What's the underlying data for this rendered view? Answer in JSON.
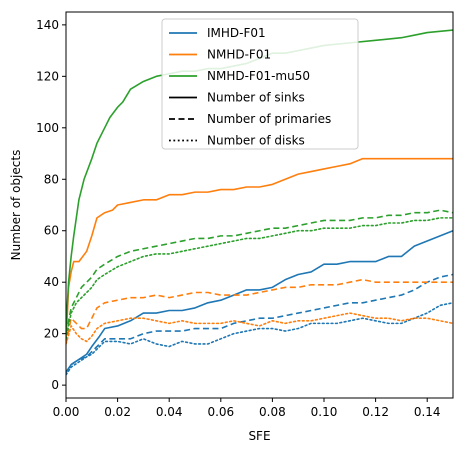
{
  "chart_data": {
    "type": "line",
    "xlabel": "SFE",
    "ylabel": "Number of objects",
    "xlim": [
      0.0,
      0.15
    ],
    "ylim": [
      -5,
      145
    ],
    "xticks": [
      0.0,
      0.02,
      0.04,
      0.06,
      0.08,
      0.1,
      0.12,
      0.14
    ],
    "xtick_labels": [
      "0.00",
      "0.02",
      "0.04",
      "0.06",
      "0.08",
      "0.10",
      "0.12",
      "0.14"
    ],
    "yticks": [
      0,
      20,
      40,
      60,
      80,
      100,
      120,
      140
    ],
    "ytick_labels": [
      "0",
      "20",
      "40",
      "60",
      "80",
      "100",
      "120",
      "140"
    ],
    "grid": false,
    "legend_position": "top-center",
    "legend": {
      "runs": [
        {
          "label": "IMHD-F01",
          "color": "#1f77b4"
        },
        {
          "label": "NMHD-F01",
          "color": "#ff7f0e"
        },
        {
          "label": "NMHD-F01-mu50",
          "color": "#2ca02c"
        }
      ],
      "styles": [
        {
          "label": "Number of sinks",
          "dash": "solid"
        },
        {
          "label": "Number of primaries",
          "dash": "dashed"
        },
        {
          "label": "Number of disks",
          "dash": "dotted"
        }
      ]
    },
    "series": [
      {
        "run": "IMHD-F01",
        "quantity": "Number of sinks",
        "color": "#1f77b4",
        "dash": "solid",
        "x": [
          0.0,
          0.002,
          0.005,
          0.008,
          0.01,
          0.013,
          0.015,
          0.02,
          0.025,
          0.03,
          0.035,
          0.04,
          0.045,
          0.05,
          0.055,
          0.06,
          0.065,
          0.07,
          0.075,
          0.08,
          0.085,
          0.09,
          0.095,
          0.1,
          0.105,
          0.11,
          0.115,
          0.12,
          0.125,
          0.13,
          0.135,
          0.14,
          0.145,
          0.15
        ],
        "y": [
          5,
          8,
          10,
          12,
          15,
          19,
          22,
          23,
          25,
          28,
          28,
          29,
          29,
          30,
          32,
          33,
          35,
          37,
          37,
          38,
          41,
          43,
          44,
          47,
          47,
          48,
          48,
          48,
          50,
          50,
          54,
          56,
          58,
          60
        ]
      },
      {
        "run": "IMHD-F01",
        "quantity": "Number of primaries",
        "color": "#1f77b4",
        "dash": "dashed",
        "x": [
          0.0,
          0.002,
          0.005,
          0.008,
          0.01,
          0.013,
          0.015,
          0.02,
          0.025,
          0.03,
          0.035,
          0.04,
          0.045,
          0.05,
          0.055,
          0.06,
          0.065,
          0.07,
          0.075,
          0.08,
          0.085,
          0.09,
          0.095,
          0.1,
          0.105,
          0.11,
          0.115,
          0.12,
          0.125,
          0.13,
          0.135,
          0.14,
          0.145,
          0.15
        ],
        "y": [
          5,
          8,
          10,
          11,
          13,
          16,
          18,
          18,
          18,
          20,
          21,
          21,
          21,
          22,
          22,
          22,
          24,
          25,
          26,
          26,
          27,
          28,
          29,
          30,
          31,
          32,
          32,
          33,
          34,
          35,
          37,
          40,
          42,
          43
        ]
      },
      {
        "run": "IMHD-F01",
        "quantity": "Number of disks",
        "color": "#1f77b4",
        "dash": "dotted",
        "x": [
          0.0,
          0.002,
          0.005,
          0.008,
          0.01,
          0.013,
          0.015,
          0.02,
          0.025,
          0.03,
          0.035,
          0.04,
          0.045,
          0.05,
          0.055,
          0.06,
          0.065,
          0.07,
          0.075,
          0.08,
          0.085,
          0.09,
          0.095,
          0.1,
          0.105,
          0.11,
          0.115,
          0.12,
          0.125,
          0.13,
          0.135,
          0.14,
          0.145,
          0.15
        ],
        "y": [
          4,
          7,
          9,
          11,
          12,
          15,
          17,
          17,
          16,
          18,
          16,
          15,
          17,
          16,
          16,
          18,
          20,
          21,
          22,
          22,
          21,
          22,
          24,
          24,
          24,
          25,
          26,
          25,
          24,
          24,
          26,
          28,
          31,
          32
        ]
      },
      {
        "run": "NMHD-F01",
        "quantity": "Number of sinks",
        "color": "#ff7f0e",
        "dash": "solid",
        "x": [
          0.0,
          0.001,
          0.002,
          0.003,
          0.005,
          0.008,
          0.01,
          0.012,
          0.015,
          0.018,
          0.02,
          0.025,
          0.03,
          0.035,
          0.04,
          0.045,
          0.05,
          0.055,
          0.06,
          0.065,
          0.07,
          0.075,
          0.08,
          0.085,
          0.09,
          0.095,
          0.1,
          0.105,
          0.11,
          0.115,
          0.12,
          0.13,
          0.14,
          0.15
        ],
        "y": [
          16,
          38,
          44,
          48,
          48,
          52,
          58,
          65,
          67,
          68,
          70,
          71,
          72,
          72,
          74,
          74,
          75,
          75,
          76,
          76,
          77,
          77,
          78,
          80,
          82,
          83,
          84,
          85,
          86,
          88,
          88,
          88,
          88,
          88
        ]
      },
      {
        "run": "NMHD-F01",
        "quantity": "Number of primaries",
        "color": "#ff7f0e",
        "dash": "dashed",
        "x": [
          0.0,
          0.002,
          0.004,
          0.006,
          0.008,
          0.01,
          0.012,
          0.015,
          0.02,
          0.025,
          0.03,
          0.035,
          0.04,
          0.045,
          0.05,
          0.055,
          0.06,
          0.065,
          0.07,
          0.075,
          0.08,
          0.085,
          0.09,
          0.095,
          0.1,
          0.105,
          0.11,
          0.115,
          0.12,
          0.125,
          0.13,
          0.135,
          0.14,
          0.145,
          0.15
        ],
        "y": [
          16,
          26,
          24,
          22,
          22,
          26,
          30,
          32,
          33,
          34,
          34,
          35,
          34,
          35,
          36,
          36,
          35,
          35,
          35,
          36,
          37,
          38,
          38,
          39,
          39,
          39,
          40,
          41,
          40,
          40,
          40,
          40,
          40,
          40,
          40
        ]
      },
      {
        "run": "NMHD-F01",
        "quantity": "Number of disks",
        "color": "#ff7f0e",
        "dash": "dotted",
        "x": [
          0.0,
          0.002,
          0.004,
          0.006,
          0.008,
          0.01,
          0.012,
          0.015,
          0.02,
          0.025,
          0.03,
          0.035,
          0.04,
          0.045,
          0.05,
          0.055,
          0.06,
          0.065,
          0.07,
          0.075,
          0.08,
          0.085,
          0.09,
          0.095,
          0.1,
          0.105,
          0.11,
          0.115,
          0.12,
          0.125,
          0.13,
          0.135,
          0.14,
          0.145,
          0.15
        ],
        "y": [
          16,
          23,
          20,
          18,
          17,
          19,
          22,
          24,
          25,
          26,
          26,
          25,
          24,
          25,
          24,
          24,
          24,
          25,
          24,
          23,
          25,
          24,
          25,
          25,
          26,
          27,
          28,
          27,
          26,
          26,
          25,
          26,
          26,
          25,
          24
        ]
      },
      {
        "run": "NMHD-F01-mu50",
        "quantity": "Number of sinks",
        "color": "#2ca02c",
        "dash": "solid",
        "x": [
          0.0,
          0.001,
          0.002,
          0.003,
          0.004,
          0.005,
          0.007,
          0.01,
          0.012,
          0.015,
          0.017,
          0.02,
          0.022,
          0.025,
          0.03,
          0.035,
          0.04,
          0.045,
          0.05,
          0.055,
          0.06,
          0.065,
          0.07,
          0.075,
          0.08,
          0.085,
          0.09,
          0.095,
          0.1,
          0.11,
          0.12,
          0.13,
          0.135,
          0.14,
          0.15
        ],
        "y": [
          22,
          40,
          50,
          58,
          65,
          72,
          80,
          88,
          94,
          100,
          104,
          108,
          110,
          115,
          118,
          120,
          121,
          122,
          122,
          123,
          123,
          124,
          125,
          127,
          129,
          129,
          130,
          131,
          132,
          133,
          134,
          135,
          136,
          137,
          138
        ]
      },
      {
        "run": "NMHD-F01-mu50",
        "quantity": "Number of primaries",
        "color": "#2ca02c",
        "dash": "dashed",
        "x": [
          0.0,
          0.002,
          0.004,
          0.006,
          0.008,
          0.01,
          0.012,
          0.015,
          0.02,
          0.025,
          0.03,
          0.035,
          0.04,
          0.045,
          0.05,
          0.055,
          0.06,
          0.065,
          0.07,
          0.075,
          0.08,
          0.085,
          0.09,
          0.095,
          0.1,
          0.105,
          0.11,
          0.115,
          0.12,
          0.125,
          0.13,
          0.135,
          0.14,
          0.145,
          0.15
        ],
        "y": [
          20,
          30,
          34,
          38,
          40,
          42,
          45,
          47,
          50,
          52,
          53,
          54,
          55,
          56,
          57,
          57,
          58,
          58,
          59,
          60,
          61,
          61,
          62,
          63,
          64,
          64,
          64,
          65,
          65,
          66,
          66,
          67,
          67,
          68,
          67
        ]
      },
      {
        "run": "NMHD-F01-mu50",
        "quantity": "Number of disks",
        "color": "#2ca02c",
        "dash": "dotted",
        "x": [
          0.0,
          0.002,
          0.004,
          0.006,
          0.008,
          0.01,
          0.012,
          0.015,
          0.02,
          0.025,
          0.03,
          0.035,
          0.04,
          0.045,
          0.05,
          0.055,
          0.06,
          0.065,
          0.07,
          0.075,
          0.08,
          0.085,
          0.09,
          0.095,
          0.1,
          0.105,
          0.11,
          0.115,
          0.12,
          0.125,
          0.13,
          0.135,
          0.14,
          0.145,
          0.15
        ],
        "y": [
          18,
          28,
          32,
          34,
          36,
          38,
          41,
          43,
          46,
          48,
          50,
          51,
          51,
          52,
          53,
          54,
          55,
          56,
          57,
          57,
          58,
          59,
          60,
          60,
          61,
          61,
          61,
          62,
          62,
          63,
          63,
          64,
          64,
          65,
          65
        ]
      }
    ]
  }
}
